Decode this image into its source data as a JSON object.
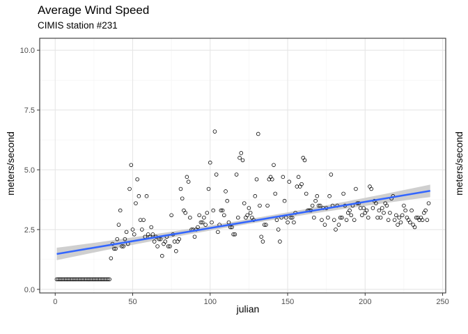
{
  "chart_data": {
    "type": "scatter",
    "title": "Average Wind Speed",
    "subtitle": "CIMIS station #231",
    "xlabel": "julian",
    "ylabel": "meters/second",
    "ylabel_right": "meters/second",
    "xlim": [
      -10,
      252
    ],
    "ylim": [
      -0.15,
      10.5
    ],
    "x_ticks": [
      0,
      50,
      100,
      150,
      200,
      250
    ],
    "x_tick_labels": [
      "0",
      "50",
      "100",
      "150",
      "200",
      "250"
    ],
    "y_ticks": [
      0,
      2.5,
      5,
      7.5,
      10
    ],
    "y_tick_labels": [
      "0.0",
      "2.5",
      "5.0",
      "7.5",
      "10.0"
    ],
    "grid": true,
    "legend": "none",
    "colors": {
      "points": "#000000",
      "trend_line": "#3366ff",
      "confidence_band": "#cccccc",
      "grid_major": "#e6e6e6",
      "grid_minor": "#f2f2f2",
      "panel_border": "#333333"
    },
    "trend": {
      "method": "linear",
      "start": {
        "x": 1,
        "y": 1.48
      },
      "end": {
        "x": 242,
        "y": 4.12
      },
      "ci_halfwidth_ends": 0.26,
      "ci_halfwidth_mid": 0.1
    },
    "series": [
      {
        "points": [
          [
            1,
            0.42
          ],
          [
            2,
            0.42
          ],
          [
            3,
            0.42
          ],
          [
            4,
            0.42
          ],
          [
            5,
            0.42
          ],
          [
            6,
            0.42
          ],
          [
            7,
            0.42
          ],
          [
            8,
            0.42
          ],
          [
            9,
            0.42
          ],
          [
            10,
            0.42
          ],
          [
            11,
            0.42
          ],
          [
            12,
            0.42
          ],
          [
            13,
            0.42
          ],
          [
            14,
            0.42
          ],
          [
            15,
            0.42
          ],
          [
            16,
            0.42
          ],
          [
            17,
            0.42
          ],
          [
            18,
            0.42
          ],
          [
            19,
            0.42
          ],
          [
            20,
            0.42
          ],
          [
            21,
            0.42
          ],
          [
            22,
            0.42
          ],
          [
            23,
            0.42
          ],
          [
            24,
            0.42
          ],
          [
            25,
            0.42
          ],
          [
            26,
            0.42
          ],
          [
            27,
            0.42
          ],
          [
            28,
            0.42
          ],
          [
            29,
            0.42
          ],
          [
            30,
            0.42
          ],
          [
            31,
            0.42
          ],
          [
            32,
            0.42
          ],
          [
            33,
            0.42
          ],
          [
            34,
            0.42
          ],
          [
            35,
            0.42
          ],
          [
            36,
            1.3
          ],
          [
            37,
            1.9
          ],
          [
            38,
            1.7
          ],
          [
            39,
            1.7
          ],
          [
            40,
            2.1
          ],
          [
            41,
            2.7
          ],
          [
            42,
            3.3
          ],
          [
            43,
            1.8
          ],
          [
            44,
            1.8
          ],
          [
            45,
            2.1
          ],
          [
            46,
            2.4
          ],
          [
            47,
            1.9
          ],
          [
            48,
            4.2
          ],
          [
            49,
            5.2
          ],
          [
            50,
            2.5
          ],
          [
            51,
            2.3
          ],
          [
            52,
            3.6
          ],
          [
            53,
            4.6
          ],
          [
            54,
            3.9
          ],
          [
            55,
            2.9
          ],
          [
            56,
            2.5
          ],
          [
            57,
            2.9
          ],
          [
            58,
            2.2
          ],
          [
            59,
            3.9
          ],
          [
            60,
            2.3
          ],
          [
            61,
            2.2
          ],
          [
            62,
            2.6
          ],
          [
            63,
            2.3
          ],
          [
            64,
            2.0
          ],
          [
            65,
            2.2
          ],
          [
            66,
            1.8
          ],
          [
            67,
            2.1
          ],
          [
            68,
            2.1
          ],
          [
            69,
            1.4
          ],
          [
            70,
            1.9
          ],
          [
            71,
            2.0
          ],
          [
            72,
            2.2
          ],
          [
            73,
            1.8
          ],
          [
            74,
            1.8
          ],
          [
            75,
            3.1
          ],
          [
            76,
            2.3
          ],
          [
            77,
            2.0
          ],
          [
            78,
            1.6
          ],
          [
            79,
            2.0
          ],
          [
            80,
            2.1
          ],
          [
            81,
            4.2
          ],
          [
            82,
            3.8
          ],
          [
            83,
            3.3
          ],
          [
            84,
            3.2
          ],
          [
            85,
            4.7
          ],
          [
            86,
            4.5
          ],
          [
            87,
            3.0
          ],
          [
            88,
            2.5
          ],
          [
            89,
            2.5
          ],
          [
            90,
            2.2
          ],
          [
            91,
            2.5
          ],
          [
            92,
            2.6
          ],
          [
            93,
            3.1
          ],
          [
            94,
            2.8
          ],
          [
            95,
            2.8
          ],
          [
            96,
            3.0
          ],
          [
            97,
            2.7
          ],
          [
            98,
            3.2
          ],
          [
            99,
            4.2
          ],
          [
            100,
            5.3
          ],
          [
            101,
            2.8
          ],
          [
            102,
            3.3
          ],
          [
            103,
            6.6
          ],
          [
            104,
            4.8
          ],
          [
            105,
            2.4
          ],
          [
            106,
            2.7
          ],
          [
            107,
            3.3
          ],
          [
            108,
            3.3
          ],
          [
            109,
            3.1
          ],
          [
            110,
            4.1
          ],
          [
            111,
            3.7
          ],
          [
            112,
            2.8
          ],
          [
            113,
            2.6
          ],
          [
            114,
            2.6
          ],
          [
            115,
            2.3
          ],
          [
            116,
            2.3
          ],
          [
            117,
            4.8
          ],
          [
            118,
            3.0
          ],
          [
            119,
            5.5
          ],
          [
            120,
            5.7
          ],
          [
            121,
            5.4
          ],
          [
            122,
            3.6
          ],
          [
            123,
            3.0
          ],
          [
            124,
            3.1
          ],
          [
            125,
            3.4
          ],
          [
            126,
            3.2
          ],
          [
            127,
            3.0
          ],
          [
            128,
            2.9
          ],
          [
            129,
            3.9
          ],
          [
            130,
            4.6
          ],
          [
            131,
            6.5
          ],
          [
            132,
            3.5
          ],
          [
            133,
            2.2
          ],
          [
            134,
            2.0
          ],
          [
            135,
            2.7
          ],
          [
            136,
            2.7
          ],
          [
            137,
            3.5
          ],
          [
            138,
            4.6
          ],
          [
            139,
            4.7
          ],
          [
            140,
            4.6
          ],
          [
            141,
            5.2
          ],
          [
            142,
            4.0
          ],
          [
            143,
            2.9
          ],
          [
            144,
            2.5
          ],
          [
            145,
            2.0
          ],
          [
            146,
            3.0
          ],
          [
            147,
            4.7
          ],
          [
            148,
            3.7
          ],
          [
            149,
            3.0
          ],
          [
            150,
            2.8
          ],
          [
            151,
            4.5
          ],
          [
            152,
            3.0
          ],
          [
            153,
            3.0
          ],
          [
            154,
            2.8
          ],
          [
            155,
            3.2
          ],
          [
            156,
            4.3
          ],
          [
            157,
            4.7
          ],
          [
            158,
            4.3
          ],
          [
            159,
            4.4
          ],
          [
            160,
            5.5
          ],
          [
            161,
            5.4
          ],
          [
            162,
            4.0
          ],
          [
            163,
            3.3
          ],
          [
            164,
            3.3
          ],
          [
            165,
            3.3
          ],
          [
            166,
            3.5
          ],
          [
            167,
            3.0
          ],
          [
            168,
            3.7
          ],
          [
            169,
            3.9
          ],
          [
            170,
            3.5
          ],
          [
            171,
            3.5
          ],
          [
            172,
            2.9
          ],
          [
            173,
            3.4
          ],
          [
            174,
            2.7
          ],
          [
            175,
            3.4
          ],
          [
            176,
            3.0
          ],
          [
            177,
            3.9
          ],
          [
            178,
            4.8
          ],
          [
            179,
            3.5
          ],
          [
            180,
            2.9
          ],
          [
            181,
            2.5
          ],
          [
            182,
            3.5
          ],
          [
            183,
            2.7
          ],
          [
            184,
            3.0
          ],
          [
            185,
            3.0
          ],
          [
            186,
            4.0
          ],
          [
            187,
            3.5
          ],
          [
            188,
            2.9
          ],
          [
            189,
            3.2
          ],
          [
            190,
            3.3
          ],
          [
            191,
            3.1
          ],
          [
            192,
            3.5
          ],
          [
            193,
            2.9
          ],
          [
            194,
            4.2
          ],
          [
            195,
            3.6
          ],
          [
            196,
            3.6
          ],
          [
            197,
            3.4
          ],
          [
            198,
            3.1
          ],
          [
            199,
            3.4
          ],
          [
            200,
            3.2
          ],
          [
            201,
            3.3
          ],
          [
            202,
            3.0
          ],
          [
            203,
            4.3
          ],
          [
            204,
            4.2
          ],
          [
            205,
            3.4
          ],
          [
            206,
            3.7
          ],
          [
            207,
            3.6
          ],
          [
            208,
            3.0
          ],
          [
            209,
            3.3
          ],
          [
            210,
            3.0
          ],
          [
            211,
            3.4
          ],
          [
            212,
            3.2
          ],
          [
            213,
            3.6
          ],
          [
            214,
            3.5
          ],
          [
            215,
            2.9
          ],
          [
            216,
            3.2
          ],
          [
            217,
            3.8
          ],
          [
            218,
            3.9
          ],
          [
            219,
            2.9
          ],
          [
            220,
            3.1
          ],
          [
            221,
            2.7
          ],
          [
            222,
            3.0
          ],
          [
            223,
            2.8
          ],
          [
            224,
            3.1
          ],
          [
            225,
            3.5
          ],
          [
            226,
            3.3
          ],
          [
            227,
            3.0
          ],
          [
            228,
            2.9
          ],
          [
            229,
            2.8
          ],
          [
            230,
            3.3
          ],
          [
            231,
            2.7
          ],
          [
            232,
            2.6
          ],
          [
            233,
            3.0
          ],
          [
            234,
            3.0
          ],
          [
            235,
            2.9
          ],
          [
            236,
            3.0
          ],
          [
            237,
            2.9
          ],
          [
            238,
            3.2
          ],
          [
            239,
            3.3
          ],
          [
            240,
            2.9
          ],
          [
            241,
            3.6
          ]
        ]
      }
    ]
  }
}
